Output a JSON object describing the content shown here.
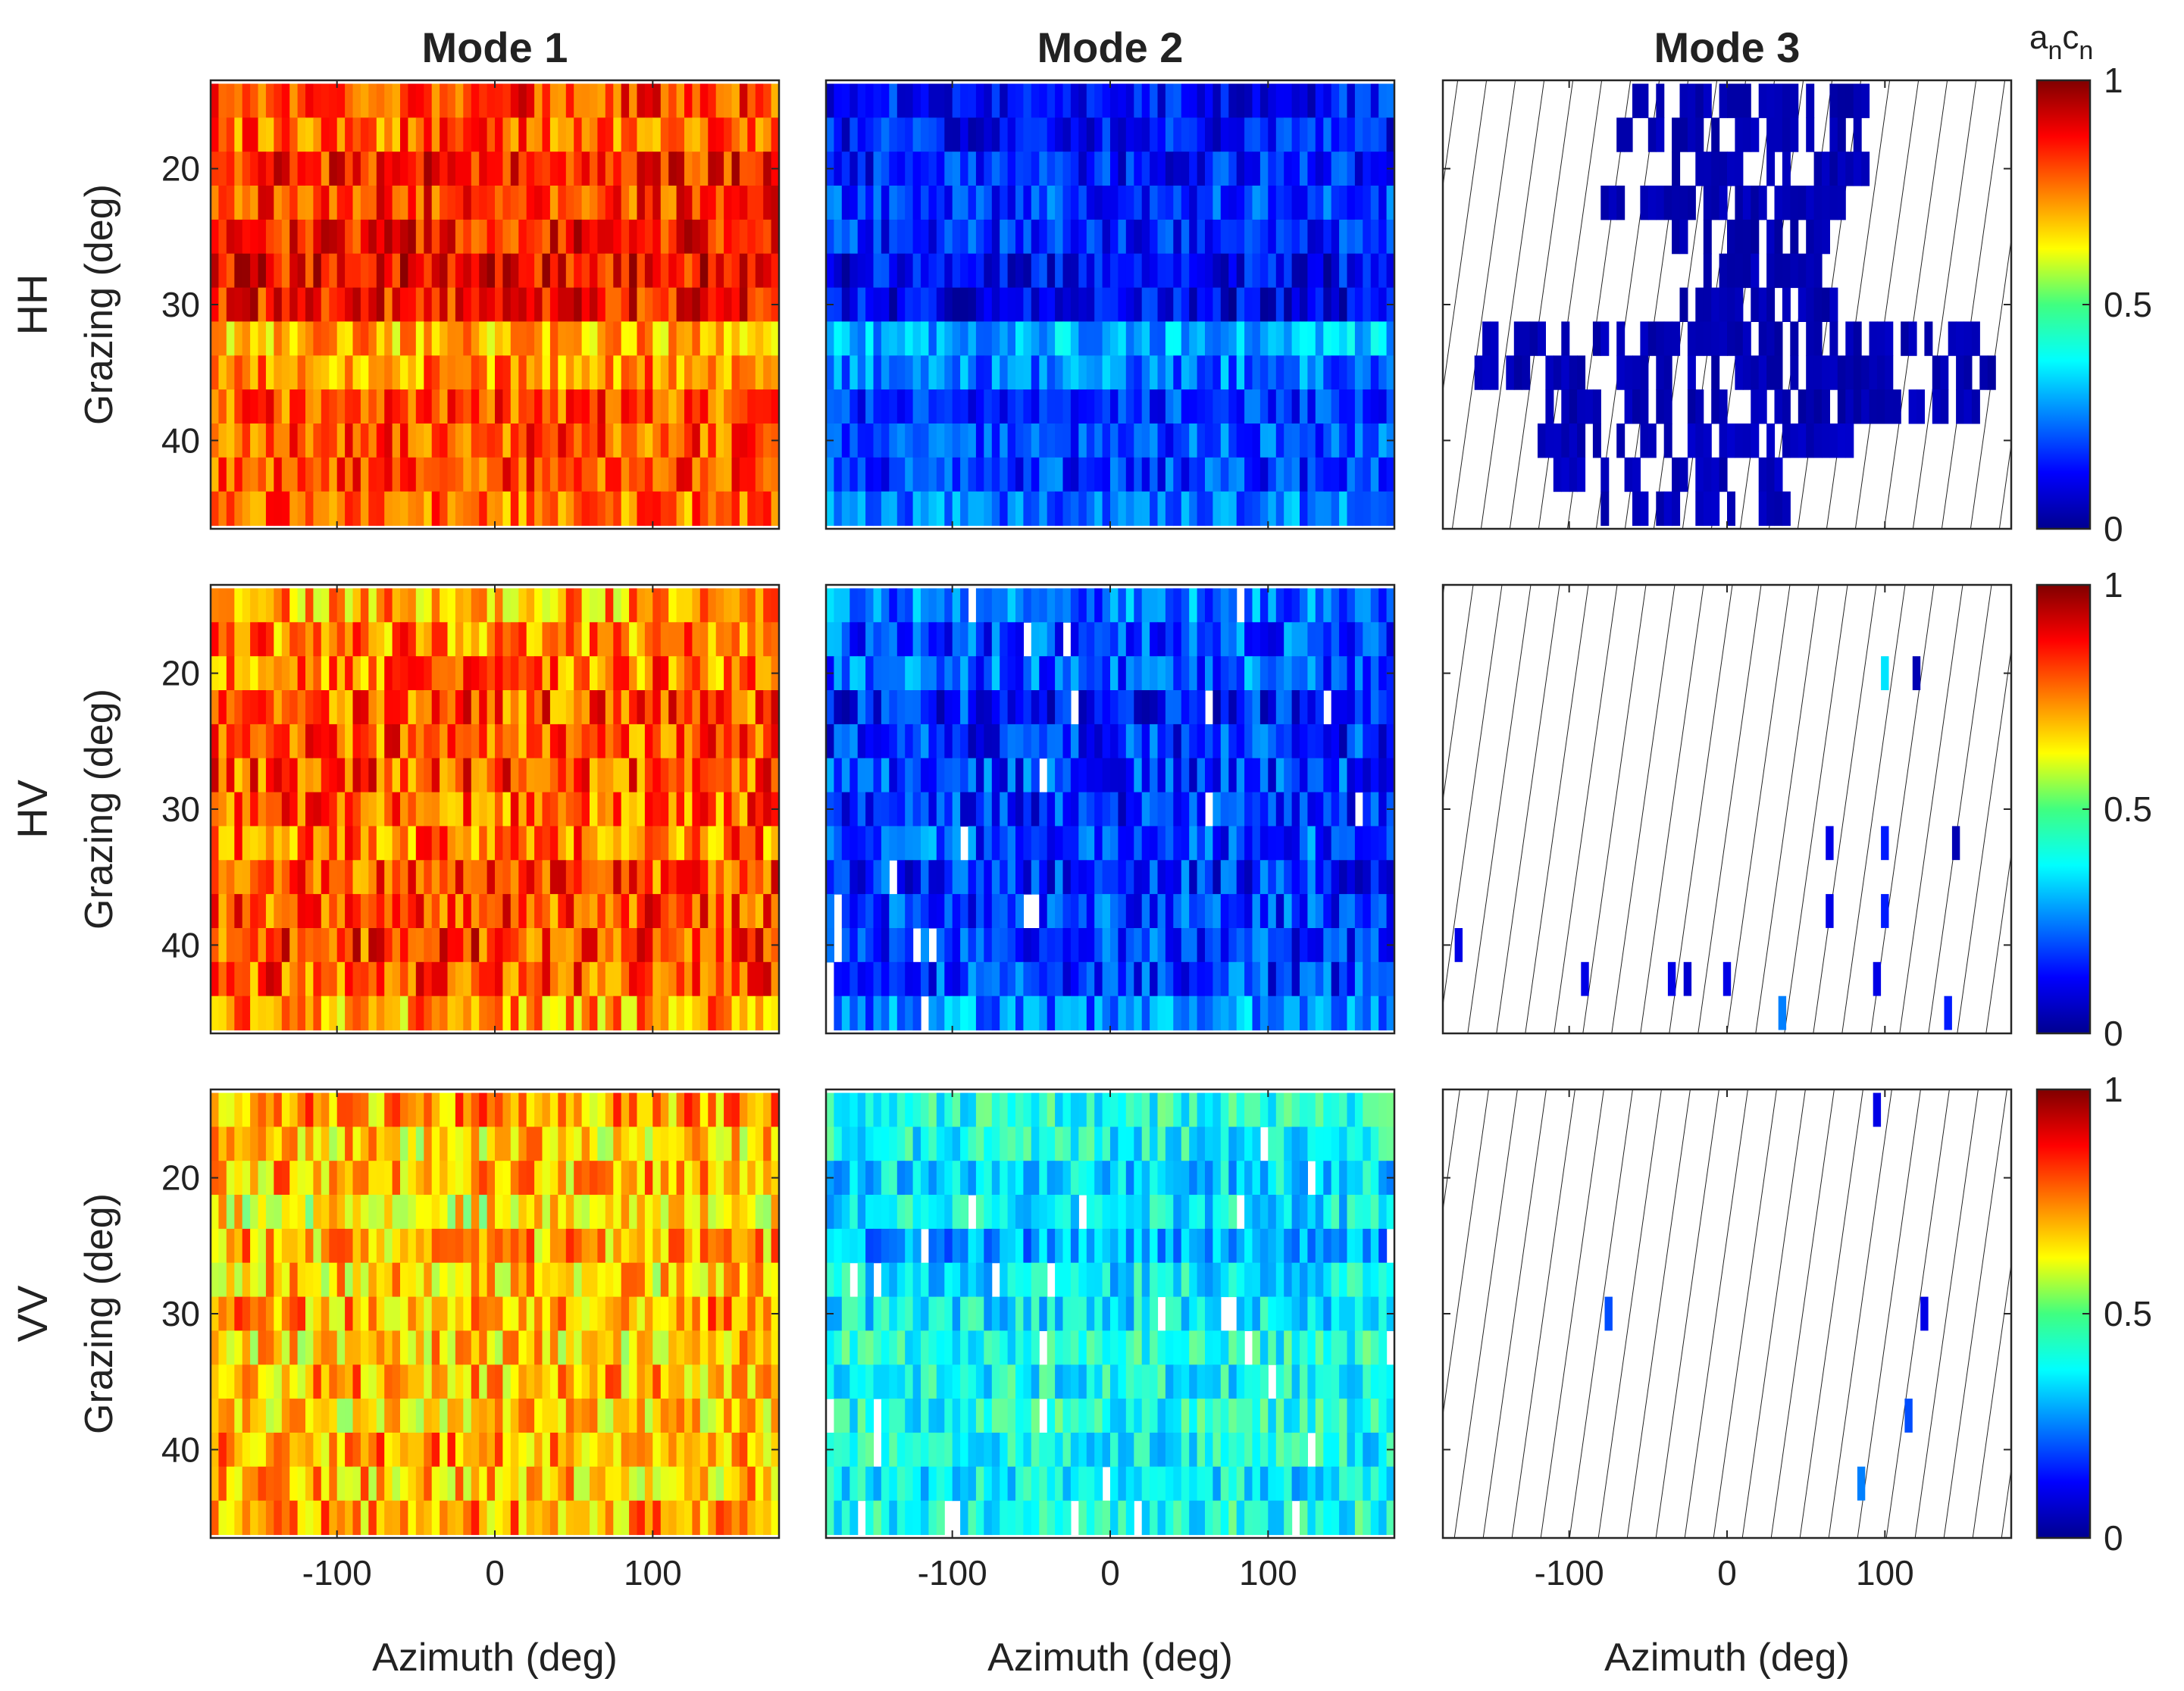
{
  "chart_data": [
    {
      "type": "heatmap",
      "title": "",
      "columns": [
        "Mode 1",
        "Mode 2",
        "Mode 3"
      ],
      "rows": [
        "HH",
        "HV",
        "VV"
      ],
      "xlabel": "Azimuth (deg)",
      "ylabel": "Grazing (deg)",
      "xlim": [
        -180,
        180
      ],
      "ylim": [
        13.5,
        46.5
      ],
      "xticks": [
        -100,
        0,
        100
      ],
      "yticks": [
        20,
        30,
        40
      ],
      "grazing_bins": [
        15,
        17.5,
        20,
        22.5,
        25,
        27.5,
        30,
        32.5,
        35,
        37.5,
        40,
        42.5,
        45
      ],
      "azimuth_bin_count": 72,
      "colorbar": {
        "label": "a",
        "label_sub": "n",
        "label2": "c",
        "label2_sub": "n",
        "ticks": [
          0,
          0.5,
          1
        ],
        "tick_labels": [
          "0",
          "0.5",
          "1"
        ],
        "colormap": "jet",
        "range": [
          0,
          1
        ]
      },
      "panels": [
        {
          "row": "HH",
          "column": "Mode 1",
          "mean_by_grazing": [
            0.82,
            0.78,
            0.85,
            0.82,
            0.86,
            0.88,
            0.86,
            0.7,
            0.74,
            0.8,
            0.8,
            0.8,
            0.76
          ],
          "spread": 0.12,
          "missing_fraction": 0.0
        },
        {
          "row": "HH",
          "column": "Mode 2",
          "mean_by_grazing": [
            0.14,
            0.14,
            0.15,
            0.18,
            0.16,
            0.12,
            0.11,
            0.3,
            0.24,
            0.18,
            0.2,
            0.18,
            0.24
          ],
          "spread": 0.1,
          "missing_fraction": 0.0
        },
        {
          "row": "HH",
          "column": "Mode 3",
          "mean_by_grazing": [
            0.05,
            0.05,
            0.05,
            0.05,
            0.05,
            0.05,
            0.05,
            0.05,
            0.05,
            0.05,
            0.06,
            0.06,
            0.06
          ],
          "spread": 0.02,
          "missing_fraction": 0.8,
          "present_az_ranges": [
            [
              -60,
              90
            ],
            [
              -70,
              95
            ],
            [
              -50,
              90
            ],
            [
              -80,
              75
            ],
            [
              -40,
              70
            ],
            [
              -20,
              60
            ],
            [
              -30,
              70
            ],
            [
              -160,
              160
            ],
            [
              -170,
              170
            ],
            [
              -120,
              160
            ],
            [
              -120,
              80
            ],
            [
              -110,
              40
            ],
            [
              -80,
              40
            ]
          ]
        },
        {
          "row": "HV",
          "column": "Mode 1",
          "mean_by_grazing": [
            0.7,
            0.75,
            0.76,
            0.8,
            0.79,
            0.8,
            0.78,
            0.76,
            0.8,
            0.8,
            0.82,
            0.8,
            0.72
          ],
          "spread": 0.14,
          "missing_fraction": 0.0
        },
        {
          "row": "HV",
          "column": "Mode 2",
          "mean_by_grazing": [
            0.24,
            0.2,
            0.22,
            0.15,
            0.16,
            0.18,
            0.17,
            0.2,
            0.16,
            0.18,
            0.17,
            0.18,
            0.26
          ],
          "spread": 0.12,
          "missing_fraction": 0.03
        },
        {
          "row": "HV",
          "column": "Mode 3",
          "mean_by_grazing": [
            0.1,
            0.1,
            0.2,
            0.1,
            0.1,
            0.1,
            0.1,
            0.1,
            0.1,
            0.1,
            0.1,
            0.1,
            0.1
          ],
          "spread": 0.05,
          "missing_fraction": 0.985,
          "present_cells": [
            [
              20,
              100,
              0.35
            ],
            [
              20,
              120,
              0.05
            ],
            [
              32.5,
              65,
              0.1
            ],
            [
              32.5,
              100,
              0.15
            ],
            [
              32.5,
              145,
              0.05
            ],
            [
              37.5,
              65,
              0.1
            ],
            [
              37.5,
              100,
              0.15
            ],
            [
              40,
              -170,
              0.1
            ],
            [
              42.5,
              -90,
              0.1
            ],
            [
              42.5,
              -35,
              0.1
            ],
            [
              42.5,
              -25,
              0.08
            ],
            [
              42.5,
              0,
              0.1
            ],
            [
              42.5,
              95,
              0.1
            ],
            [
              45,
              35,
              0.25
            ],
            [
              45,
              140,
              0.15
            ]
          ]
        },
        {
          "row": "VV",
          "column": "Mode 1",
          "mean_by_grazing": [
            0.72,
            0.66,
            0.7,
            0.62,
            0.7,
            0.66,
            0.72,
            0.66,
            0.7,
            0.66,
            0.72,
            0.68,
            0.72
          ],
          "spread": 0.14,
          "missing_fraction": 0.0
        },
        {
          "row": "VV",
          "column": "Mode 2",
          "mean_by_grazing": [
            0.4,
            0.38,
            0.34,
            0.36,
            0.28,
            0.36,
            0.36,
            0.4,
            0.38,
            0.4,
            0.38,
            0.36,
            0.4
          ],
          "spread": 0.1,
          "missing_fraction": 0.03
        },
        {
          "row": "VV",
          "column": "Mode 3",
          "mean_by_grazing": [
            0.1,
            0.1,
            0.1,
            0.1,
            0.1,
            0.1,
            0.1,
            0.1,
            0.1,
            0.1,
            0.1,
            0.1,
            0.1
          ],
          "spread": 0.03,
          "missing_fraction": 0.993,
          "present_cells": [
            [
              15,
              95,
              0.1
            ],
            [
              30,
              -75,
              0.2
            ],
            [
              30,
              125,
              0.1
            ],
            [
              37.5,
              115,
              0.2
            ],
            [
              42.5,
              85,
              0.25
            ]
          ]
        }
      ]
    }
  ]
}
